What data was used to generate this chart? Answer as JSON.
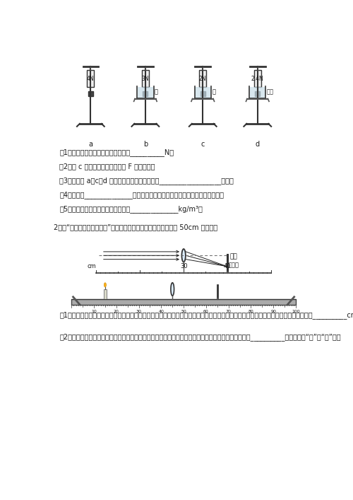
{
  "bg_color": "#ffffff",
  "text_color": "#1a1a1a",
  "line1_q1": "（1）物体全部没入水中受到的浮力是__________N；",
  "line1_q2": "（2）在 c 图中画出重物所受浮力 F 的示意图；",
  "line1_q3": "（3）根据图 a、c、d 实验可得出：浮力的大小与__________________有关；",
  "line1_q4": "（4）根据图______________实验可得出：浮力的大小与排开液体的体积有关；",
  "line1_q5": "（5）由实验数据可知，液体的密度为______________kg/m³。",
  "line2_intro": "2、在“探究凸透镜成像规律”的实验中，将凸透镜固定在光具座上 50cm 刻线处。",
  "line2_q1": "（1）如图甲所示，一束平行于凸透镜主光轴的光线经过凸透镜后，在光屏上形成了一个最小、最亮的光斌。由图甲可知，凸透镜的焦距为__________cm；",
  "line2_q2": "（2）将光屏和点燃的蜡烛分别放在凸透镜的两侧，如图所示，为了找到烛焰清晰的像，小明应将光屏向__________移动（选填“左”或“右”）。",
  "scale_labels": [
    "a",
    "b",
    "c",
    "d"
  ],
  "scale_readings": [
    "4N",
    "3N",
    "2N",
    "2.4N"
  ],
  "liquid_labels": [
    "",
    "水",
    "水",
    "液体"
  ],
  "optical_labels": [
    "光屏",
    "光具座"
  ]
}
